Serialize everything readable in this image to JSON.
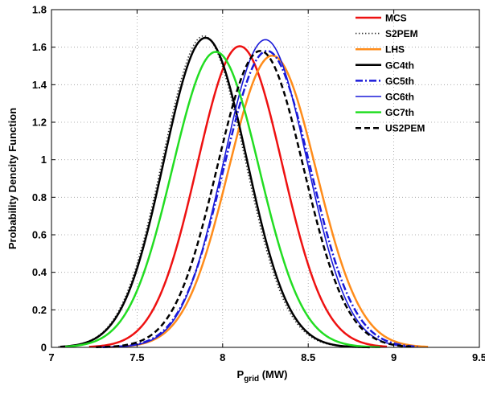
{
  "chart_data": {
    "type": "line",
    "title": "",
    "xlabel": "P",
    "xlabel_sub": "grid",
    "xlabel_unit": " (MW)",
    "ylabel": "Probability Dencity Function",
    "xlim": [
      7,
      9.5
    ],
    "ylim": [
      0,
      1.8
    ],
    "xticks": [
      7,
      7.5,
      8,
      8.5,
      9,
      9.5
    ],
    "xtick_labels": [
      "7",
      "7.5",
      "8",
      "8.5",
      "9",
      "9.5"
    ],
    "yticks": [
      0,
      0.2,
      0.4,
      0.6,
      0.8,
      1,
      1.2,
      1.4,
      1.6,
      1.8
    ],
    "ytick_labels": [
      "0",
      "0.2",
      "0.4",
      "0.6",
      "0.8",
      "1",
      "1.2",
      "1.4",
      "1.6",
      "1.8"
    ],
    "grid": "dotted",
    "legend_position": "top-right",
    "series": [
      {
        "name": "MCS",
        "color": "#ee1111",
        "dash": "solid",
        "width": 2.5,
        "mean": 8.1,
        "peak": 1.605,
        "range": [
          7.22,
          8.96
        ]
      },
      {
        "name": "S2PEM",
        "color": "#333333",
        "dash": "dotted",
        "width": 1.6,
        "mean": 7.89,
        "peak": 1.66,
        "range": [
          7.04,
          8.86
        ]
      },
      {
        "name": "LHS",
        "color": "#ff8c1a",
        "dash": "solid",
        "width": 2.5,
        "mean": 8.29,
        "peak": 1.555,
        "range": [
          7.34,
          9.2
        ]
      },
      {
        "name": "GC4th",
        "color": "#000000",
        "dash": "solid",
        "width": 2.5,
        "mean": 7.9,
        "peak": 1.65,
        "range": [
          7.05,
          8.86
        ]
      },
      {
        "name": "GC5th",
        "color": "#1a1ad9",
        "dash": "dashdot",
        "width": 2.5,
        "mean": 8.26,
        "peak": 1.58,
        "range": [
          7.3,
          9.14
        ]
      },
      {
        "name": "GC6th",
        "color": "#1a1ad9",
        "dash": "solid",
        "width": 1.6,
        "mean": 8.25,
        "peak": 1.64,
        "range": [
          7.29,
          9.12
        ]
      },
      {
        "name": "GC7th",
        "color": "#22dd22",
        "dash": "solid",
        "width": 2.5,
        "mean": 7.96,
        "peak": 1.575,
        "range": [
          7.08,
          8.92
        ]
      },
      {
        "name": "US2PEM",
        "color": "#000000",
        "dash": "dashed",
        "width": 2.5,
        "mean": 8.22,
        "peak": 1.58,
        "range": [
          7.26,
          9.1
        ]
      }
    ]
  }
}
